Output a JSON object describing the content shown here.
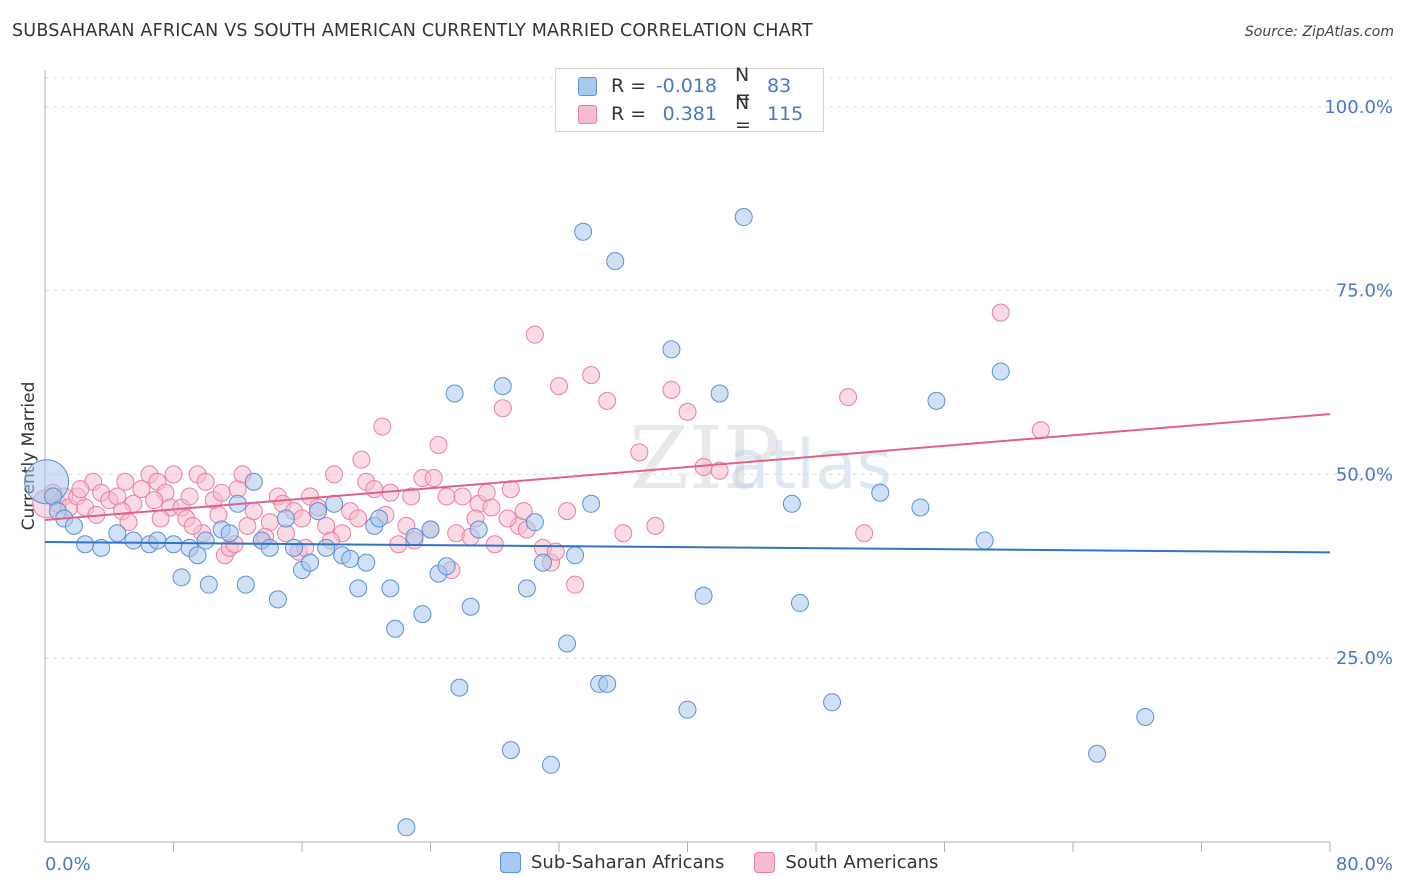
{
  "header": {
    "title": "SUBSAHARAN AFRICAN VS SOUTH AMERICAN CURRENTLY MARRIED CORRELATION CHART",
    "source": "Source: ZipAtlas.com"
  },
  "legend_top": [
    {
      "r_label": "R =",
      "r_value": "-0.018",
      "n_label": "N =",
      "n_value": "83"
    },
    {
      "r_label": "R =",
      "r_value": "0.381",
      "n_label": "N =",
      "n_value": "115"
    }
  ],
  "legend_bottom": [
    {
      "label": "Sub-Saharan Africans"
    },
    {
      "label": "South Americans"
    }
  ],
  "colors": {
    "blue_fill": "#a9c8ef",
    "blue_stroke": "#5b8fd6",
    "blue_line": "#2f74c9",
    "pink_fill": "#f6bccd",
    "pink_stroke": "#e8809f",
    "pink_line": "#e0608a",
    "tick_label": "#4878c6",
    "grid": "#dcdcdc"
  },
  "chart_data": {
    "type": "scatter",
    "ylabel": "Currently Married",
    "xlabel": "",
    "xlim": [
      0,
      80
    ],
    "ylim": [
      0,
      105
    ],
    "x_tick_labels": [
      "0.0%",
      "80.0%"
    ],
    "y_tick_labels": [
      {
        "value": 100,
        "label": "100.0%"
      },
      {
        "value": 75,
        "label": "75.0%"
      },
      {
        "value": 50,
        "label": "50.0%"
      },
      {
        "value": 25,
        "label": "25.0%"
      }
    ],
    "grid": "horizontal dashed",
    "watermark": "ZIPatlas",
    "series": [
      {
        "name": "Sub-Saharan Africans",
        "color": "#5b8fd6",
        "trend": {
          "x": [
            0,
            80
          ],
          "y": [
            40.8,
            39.4
          ]
        },
        "points": [
          {
            "x": 0.1,
            "y": 49,
            "s": 22
          },
          {
            "x": 0.5,
            "y": 47
          },
          {
            "x": 0.8,
            "y": 45
          },
          {
            "x": 1.2,
            "y": 44
          },
          {
            "x": 1.8,
            "y": 43
          },
          {
            "x": 2.5,
            "y": 40.5
          },
          {
            "x": 3.5,
            "y": 40
          },
          {
            "x": 4.5,
            "y": 42
          },
          {
            "x": 5.5,
            "y": 41
          },
          {
            "x": 6.5,
            "y": 40.5
          },
          {
            "x": 7,
            "y": 41
          },
          {
            "x": 8,
            "y": 40.5
          },
          {
            "x": 8.5,
            "y": 36
          },
          {
            "x": 9,
            "y": 40
          },
          {
            "x": 9.5,
            "y": 39
          },
          {
            "x": 10,
            "y": 41
          },
          {
            "x": 10.2,
            "y": 35
          },
          {
            "x": 11,
            "y": 42.5
          },
          {
            "x": 11.5,
            "y": 42
          },
          {
            "x": 12,
            "y": 46
          },
          {
            "x": 12.5,
            "y": 35
          },
          {
            "x": 13,
            "y": 49
          },
          {
            "x": 13.5,
            "y": 41
          },
          {
            "x": 14,
            "y": 40
          },
          {
            "x": 14.5,
            "y": 33
          },
          {
            "x": 15,
            "y": 44
          },
          {
            "x": 15.5,
            "y": 40
          },
          {
            "x": 16,
            "y": 37
          },
          {
            "x": 16.5,
            "y": 38
          },
          {
            "x": 17,
            "y": 45
          },
          {
            "x": 17.5,
            "y": 40
          },
          {
            "x": 18,
            "y": 46
          },
          {
            "x": 18.5,
            "y": 39
          },
          {
            "x": 19,
            "y": 38.5
          },
          {
            "x": 19.5,
            "y": 34.5
          },
          {
            "x": 20,
            "y": 38
          },
          {
            "x": 20.5,
            "y": 43
          },
          {
            "x": 20.8,
            "y": 44
          },
          {
            "x": 21.5,
            "y": 34.5
          },
          {
            "x": 21.8,
            "y": 29
          },
          {
            "x": 22.5,
            "y": 2
          },
          {
            "x": 23,
            "y": 41.5
          },
          {
            "x": 23.5,
            "y": 31
          },
          {
            "x": 24,
            "y": 42.5
          },
          {
            "x": 24.5,
            "y": 36.5
          },
          {
            "x": 25,
            "y": 37.5
          },
          {
            "x": 25.5,
            "y": 61
          },
          {
            "x": 25.8,
            "y": 21
          },
          {
            "x": 26.5,
            "y": 32
          },
          {
            "x": 27,
            "y": 42.5
          },
          {
            "x": 28.5,
            "y": 62
          },
          {
            "x": 29,
            "y": 12.5
          },
          {
            "x": 30,
            "y": 34.5
          },
          {
            "x": 30.5,
            "y": 43.5
          },
          {
            "x": 31,
            "y": 38
          },
          {
            "x": 31.5,
            "y": 10.5
          },
          {
            "x": 32.5,
            "y": 27
          },
          {
            "x": 33,
            "y": 39
          },
          {
            "x": 33.5,
            "y": 83
          },
          {
            "x": 34,
            "y": 46
          },
          {
            "x": 34.5,
            "y": 21.5
          },
          {
            "x": 35,
            "y": 21.5
          },
          {
            "x": 35.5,
            "y": 79
          },
          {
            "x": 39,
            "y": 67
          },
          {
            "x": 40,
            "y": 18
          },
          {
            "x": 41,
            "y": 33.5
          },
          {
            "x": 42,
            "y": 61
          },
          {
            "x": 43.5,
            "y": 85
          },
          {
            "x": 46.5,
            "y": 46
          },
          {
            "x": 47,
            "y": 32.5
          },
          {
            "x": 49,
            "y": 19
          },
          {
            "x": 52,
            "y": 47.5
          },
          {
            "x": 54.5,
            "y": 45.5
          },
          {
            "x": 55.5,
            "y": 60
          },
          {
            "x": 58.5,
            "y": 41
          },
          {
            "x": 59.5,
            "y": 64
          },
          {
            "x": 65.5,
            "y": 12
          },
          {
            "x": 68.5,
            "y": 17
          }
        ]
      },
      {
        "name": "South Americans",
        "color": "#e8809f",
        "trend": {
          "x": [
            0,
            80
          ],
          "y": [
            43.8,
            58.2
          ]
        },
        "points": [
          {
            "x": 0.1,
            "y": 46,
            "s": 14
          },
          {
            "x": 0.5,
            "y": 47.5
          },
          {
            "x": 0.8,
            "y": 46
          },
          {
            "x": 1.2,
            "y": 47
          },
          {
            "x": 1.5,
            "y": 45.5
          },
          {
            "x": 2,
            "y": 47
          },
          {
            "x": 2.5,
            "y": 45.5
          },
          {
            "x": 3,
            "y": 49
          },
          {
            "x": 3.5,
            "y": 47.5
          },
          {
            "x": 4,
            "y": 46.5
          },
          {
            "x": 4.5,
            "y": 47
          },
          {
            "x": 5,
            "y": 49
          },
          {
            "x": 5.5,
            "y": 46
          },
          {
            "x": 6,
            "y": 48
          },
          {
            "x": 6.5,
            "y": 50
          },
          {
            "x": 7,
            "y": 49
          },
          {
            "x": 7.5,
            "y": 47.5
          },
          {
            "x": 7.8,
            "y": 45.5
          },
          {
            "x": 8,
            "y": 50
          },
          {
            "x": 8.5,
            "y": 45.5
          },
          {
            "x": 9,
            "y": 47
          },
          {
            "x": 9.5,
            "y": 50
          },
          {
            "x": 9.8,
            "y": 42
          },
          {
            "x": 10,
            "y": 49
          },
          {
            "x": 10.5,
            "y": 46.5
          },
          {
            "x": 11,
            "y": 47.5
          },
          {
            "x": 11.2,
            "y": 39
          },
          {
            "x": 11.5,
            "y": 40
          },
          {
            "x": 12,
            "y": 48
          },
          {
            "x": 12.3,
            "y": 50
          },
          {
            "x": 12.6,
            "y": 43
          },
          {
            "x": 13,
            "y": 45
          },
          {
            "x": 13.5,
            "y": 41
          },
          {
            "x": 14,
            "y": 43.5
          },
          {
            "x": 14.5,
            "y": 47
          },
          {
            "x": 14.8,
            "y": 46
          },
          {
            "x": 15,
            "y": 42
          },
          {
            "x": 15.5,
            "y": 45
          },
          {
            "x": 16,
            "y": 44
          },
          {
            "x": 16.5,
            "y": 47
          },
          {
            "x": 17,
            "y": 45.5
          },
          {
            "x": 17.5,
            "y": 43
          },
          {
            "x": 18,
            "y": 50
          },
          {
            "x": 18.5,
            "y": 42
          },
          {
            "x": 19,
            "y": 45
          },
          {
            "x": 19.5,
            "y": 44
          },
          {
            "x": 20,
            "y": 49
          },
          {
            "x": 20.5,
            "y": 48
          },
          {
            "x": 21,
            "y": 56.5
          },
          {
            "x": 21.5,
            "y": 47.5
          },
          {
            "x": 22,
            "y": 40.5
          },
          {
            "x": 22.5,
            "y": 43
          },
          {
            "x": 23,
            "y": 41
          },
          {
            "x": 23.5,
            "y": 49.5
          },
          {
            "x": 24,
            "y": 42.5
          },
          {
            "x": 24.5,
            "y": 54
          },
          {
            "x": 25,
            "y": 47
          },
          {
            "x": 25.3,
            "y": 37
          },
          {
            "x": 25.6,
            "y": 42
          },
          {
            "x": 26,
            "y": 47
          },
          {
            "x": 26.5,
            "y": 41.5
          },
          {
            "x": 27,
            "y": 46
          },
          {
            "x": 27.5,
            "y": 47.5
          },
          {
            "x": 28,
            "y": 40.5
          },
          {
            "x": 28.5,
            "y": 59
          },
          {
            "x": 29,
            "y": 48
          },
          {
            "x": 29.5,
            "y": 43
          },
          {
            "x": 30,
            "y": 42.5
          },
          {
            "x": 30.5,
            "y": 69
          },
          {
            "x": 31,
            "y": 40
          },
          {
            "x": 31.5,
            "y": 38
          },
          {
            "x": 32,
            "y": 62
          },
          {
            "x": 32.5,
            "y": 45
          },
          {
            "x": 33,
            "y": 35
          },
          {
            "x": 34,
            "y": 63.5
          },
          {
            "x": 35,
            "y": 60
          },
          {
            "x": 36,
            "y": 42
          },
          {
            "x": 37,
            "y": 53
          },
          {
            "x": 38,
            "y": 43
          },
          {
            "x": 39,
            "y": 61.5
          },
          {
            "x": 40,
            "y": 58.5
          },
          {
            "x": 41,
            "y": 51
          },
          {
            "x": 42,
            "y": 50.5
          },
          {
            "x": 50,
            "y": 60.5
          },
          {
            "x": 51,
            "y": 42
          },
          {
            "x": 59.5,
            "y": 72
          },
          {
            "x": 62,
            "y": 56
          },
          {
            "x": 13.7,
            "y": 41.5
          },
          {
            "x": 15.8,
            "y": 39.5
          },
          {
            "x": 17.8,
            "y": 41
          },
          {
            "x": 19.7,
            "y": 52
          },
          {
            "x": 21.2,
            "y": 44.5
          },
          {
            "x": 22.8,
            "y": 47
          },
          {
            "x": 24.2,
            "y": 49.5
          },
          {
            "x": 26.8,
            "y": 44
          },
          {
            "x": 27.8,
            "y": 45.5
          },
          {
            "x": 28.8,
            "y": 44
          },
          {
            "x": 29.8,
            "y": 45
          },
          {
            "x": 31.8,
            "y": 39.5
          },
          {
            "x": 10.8,
            "y": 44.5
          },
          {
            "x": 8.8,
            "y": 44
          },
          {
            "x": 6.8,
            "y": 46.5
          },
          {
            "x": 4.8,
            "y": 45
          },
          {
            "x": 3.2,
            "y": 44.5
          },
          {
            "x": 2.2,
            "y": 48
          },
          {
            "x": 5.2,
            "y": 43.5
          },
          {
            "x": 7.2,
            "y": 44
          },
          {
            "x": 9.2,
            "y": 43
          },
          {
            "x": 11.8,
            "y": 40.5
          },
          {
            "x": 16.2,
            "y": 40
          }
        ]
      }
    ]
  }
}
